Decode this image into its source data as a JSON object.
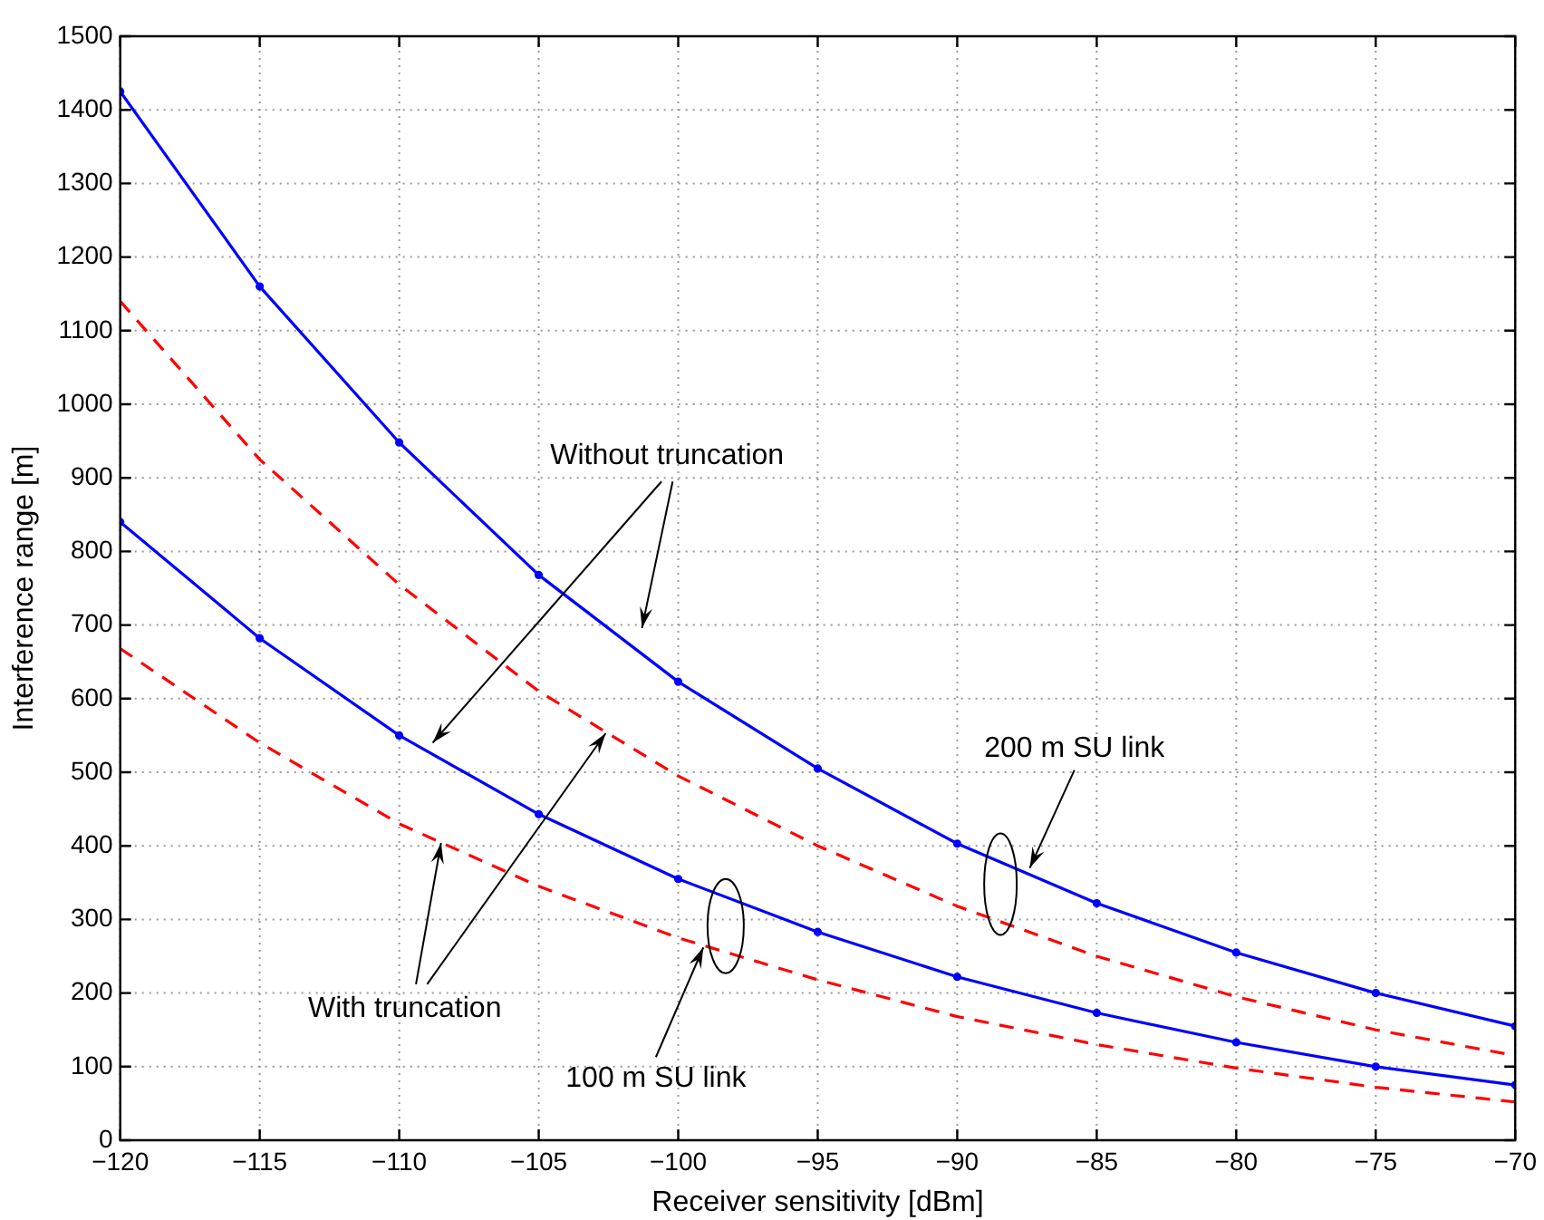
{
  "chart_data": {
    "type": "line",
    "xlabel": "Receiver sensitivity [dBm]",
    "ylabel": "Interference range [m]",
    "x": [
      -120,
      -115,
      -110,
      -105,
      -100,
      -95,
      -90,
      -85,
      -80,
      -75,
      -70
    ],
    "series": [
      {
        "color": "#0000ff",
        "line_style": "solid",
        "marker": "circle",
        "values": [
          1425,
          1160,
          948,
          768,
          623,
          505,
          403,
          322,
          255,
          200,
          155
        ]
      },
      {
        "color": "#ff0000",
        "line_style": "dashed",
        "marker": "none",
        "values": [
          1140,
          925,
          755,
          610,
          495,
          400,
          318,
          250,
          195,
          150,
          115
        ]
      },
      {
        "color": "#0000ff",
        "line_style": "solid",
        "marker": "circle",
        "values": [
          840,
          682,
          550,
          443,
          355,
          283,
          222,
          173,
          133,
          100,
          75
        ]
      },
      {
        "color": "#ff0000",
        "line_style": "dashed",
        "marker": "none",
        "values": [
          668,
          540,
          430,
          345,
          275,
          218,
          168,
          130,
          98,
          72,
          52
        ]
      }
    ],
    "xlim": [
      -120,
      -70
    ],
    "xticks": [
      -120,
      -115,
      -110,
      -105,
      -100,
      -95,
      -90,
      -85,
      -80,
      -75,
      -70
    ],
    "ylim": [
      0,
      1500
    ],
    "yticks": [
      0,
      100,
      200,
      300,
      400,
      500,
      600,
      700,
      800,
      900,
      1000,
      1100,
      1200,
      1300,
      1400,
      1500
    ],
    "grid": true,
    "legend": false,
    "annotations": [
      {
        "text": "Without truncation",
        "x": -108.8,
        "y": 540
      },
      {
        "text": "With truncation",
        "x": -108.5,
        "y": 404
      },
      {
        "text": "200 m SU link",
        "x": -87.4,
        "y": 370
      },
      {
        "text": "100 m SU link",
        "x": -99.1,
        "y": 262
      }
    ]
  }
}
